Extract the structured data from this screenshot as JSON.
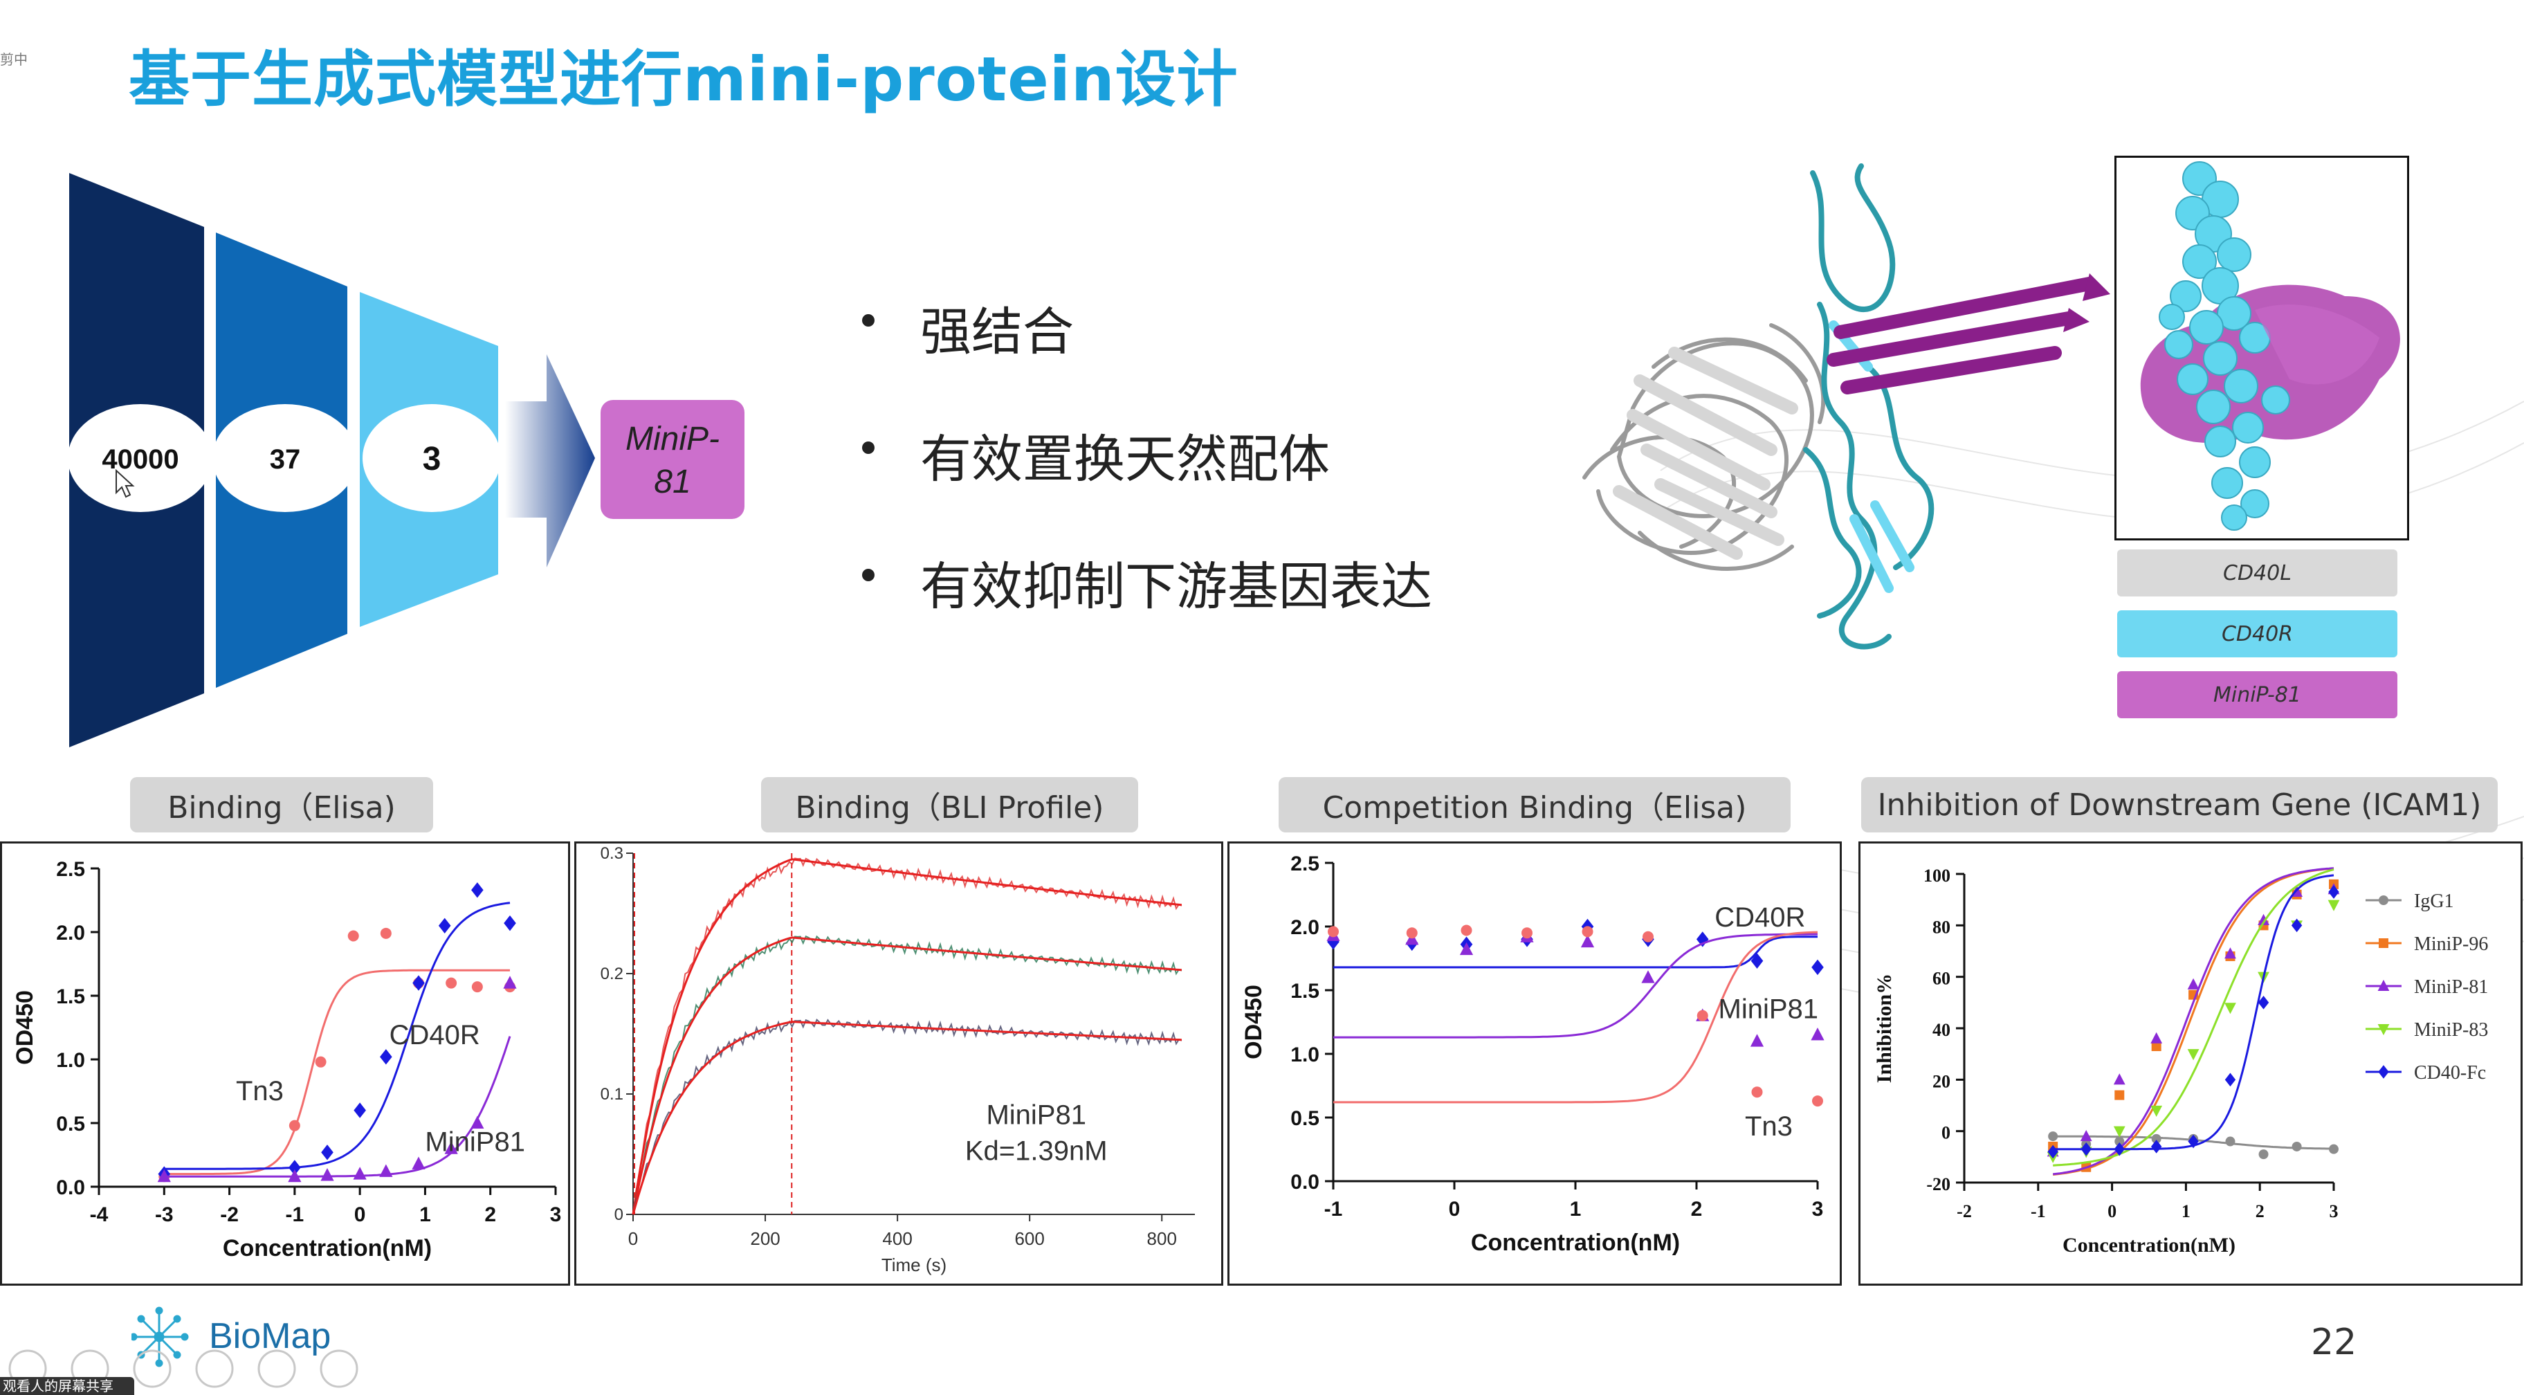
{
  "slide": {
    "title": "基于生成式模型进行mini-protein设计",
    "page_number": "22",
    "side_text": "剪中",
    "share_text": "观看人的屏幕共享",
    "logo_text": "BioMap"
  },
  "funnel": {
    "stages": [
      "40000",
      "37",
      "3"
    ],
    "result": [
      "MiniP-",
      "81"
    ],
    "colors": [
      "#0b2a5e",
      "#0e68b5",
      "#5cc8f2"
    ],
    "result_color": "#cc6fcc"
  },
  "bullets": [
    "强结合",
    "有效置换天然配体",
    "有效抑制下游基因表达"
  ],
  "structure_legend": [
    {
      "label": "CD40L",
      "color": "#d9d9d9"
    },
    {
      "label": "CD40R",
      "color": "#6fd8f2"
    },
    {
      "label": "MiniP-81",
      "color": "#c768c7"
    }
  ],
  "panel_labels": [
    "Binding（Elisa)",
    "Binding（BLI Profile)",
    "Competition Binding（Elisa)",
    "Inhibition of Downstream Gene (ICAM1)"
  ],
  "chart_data": [
    {
      "type": "scatter",
      "title": "Binding（Elisa)",
      "xlabel": "Concentration(nM)",
      "ylabel": "OD450",
      "xlim": [
        -4,
        3
      ],
      "ylim": [
        0,
        2.5
      ],
      "xticks": [
        "-4",
        "-3",
        "-2",
        "-1",
        "0",
        "1",
        "2",
        "3"
      ],
      "yticks": [
        "0.0",
        "0.5",
        "1.0",
        "1.5",
        "2.0",
        "2.5"
      ],
      "series": [
        {
          "name": "Tn3",
          "color": "#f26d6d",
          "marker": "circle",
          "x": [
            -3,
            -1,
            -0.6,
            -0.1,
            0.4,
            0.9,
            1.4,
            1.8,
            2.3
          ],
          "y": [
            0.08,
            0.48,
            0.98,
            1.97,
            1.99,
            1.6,
            1.6,
            1.57,
            1.57
          ],
          "fit": {
            "bottom": 0.1,
            "top": 1.7,
            "ec50": -0.75,
            "hill": 2.2
          }
        },
        {
          "name": "CD40R",
          "color": "#1a1ae0",
          "marker": "diamond",
          "x": [
            -3,
            -1,
            -0.5,
            0,
            0.4,
            0.9,
            1.3,
            1.8,
            2.3
          ],
          "y": [
            0.1,
            0.15,
            0.27,
            0.6,
            1.02,
            1.6,
            2.05,
            2.33,
            2.07
          ],
          "fit": {
            "bottom": 0.14,
            "top": 2.25,
            "ec50": 0.75,
            "hill": 1.3
          }
        },
        {
          "name": "MiniP81",
          "color": "#8a2ad6",
          "marker": "triangle",
          "x": [
            -3,
            -1,
            -0.5,
            0,
            0.4,
            0.9,
            1.4,
            1.8,
            2.3
          ],
          "y": [
            0.08,
            0.08,
            0.09,
            0.1,
            0.12,
            0.18,
            0.3,
            0.5,
            1.6
          ],
          "fit": {
            "bottom": 0.08,
            "top": 2.6,
            "ec50": 2.4,
            "hill": 1.1
          }
        }
      ]
    },
    {
      "type": "line",
      "title": "Binding（BLI Profile)",
      "xlabel": "Time (s)",
      "xlim": [
        0,
        850
      ],
      "ylim": [
        0,
        0.3
      ],
      "xticks": [
        "0",
        "200",
        "400",
        "600",
        "800"
      ],
      "yticks": [
        "0",
        "0.1",
        "0.2",
        "0.3"
      ],
      "annotation": [
        "MiniP81",
        "Kd=1.39nM"
      ],
      "association_end": 240,
      "series": [
        {
          "name": "",
          "plateau": 0.295,
          "end": 0.257,
          "color": "#e03a3a"
        },
        {
          "name": "",
          "plateau": 0.23,
          "end": 0.203,
          "color": "#2f7d5a"
        },
        {
          "name": "",
          "plateau": 0.16,
          "end": 0.145,
          "color": "#4a4a6a"
        }
      ]
    },
    {
      "type": "scatter",
      "title": "Competition Binding（Elisa)",
      "xlabel": "Concentration(nM)",
      "ylabel": "OD450",
      "xlim": [
        -1,
        3
      ],
      "ylim": [
        0,
        2.5
      ],
      "xticks": [
        "-1",
        "0",
        "1",
        "2",
        "3"
      ],
      "yticks": [
        "0.0",
        "0.5",
        "1.0",
        "1.5",
        "2.0",
        "2.5"
      ],
      "series": [
        {
          "name": "CD40R",
          "color": "#1a1ae0",
          "marker": "diamond",
          "x": [
            -1,
            -0.35,
            0.1,
            0.6,
            1.1,
            1.6,
            2.05,
            2.5,
            3
          ],
          "y": [
            1.88,
            1.87,
            1.86,
            1.9,
            2.0,
            1.9,
            1.9,
            1.73,
            1.68
          ],
          "fit": {
            "bottom": 1.68,
            "top": 1.92,
            "ec50": 2.5,
            "hill": 8
          }
        },
        {
          "name": "MiniP81",
          "color": "#8a2ad6",
          "marker": "triangle",
          "x": [
            -1,
            -0.35,
            0.1,
            0.6,
            1.1,
            1.6,
            2.05,
            2.5,
            3
          ],
          "y": [
            1.93,
            1.9,
            1.82,
            1.92,
            1.88,
            1.6,
            1.3,
            1.1,
            1.15
          ],
          "fit": {
            "bottom": 1.13,
            "top": 1.94,
            "ec50": 1.65,
            "hill": 2.5
          }
        },
        {
          "name": "Tn3",
          "color": "#f26d6d",
          "marker": "circle",
          "x": [
            -1,
            -0.35,
            0.1,
            0.6,
            1.1,
            1.6,
            2.05,
            2.5,
            3
          ],
          "y": [
            1.96,
            1.95,
            1.97,
            1.95,
            1.96,
            1.92,
            1.3,
            0.7,
            0.63
          ],
          "fit": {
            "bottom": 0.62,
            "top": 1.96,
            "ec50": 2.15,
            "hill": 3
          }
        }
      ]
    },
    {
      "type": "scatter",
      "title": "Inhibition of Downstream Gene (ICAM1)",
      "xlabel": "Concentration(nM)",
      "ylabel": "Inhibition%",
      "xlim": [
        -2,
        3
      ],
      "ylim": [
        -20,
        100
      ],
      "xticks": [
        "-2",
        "-1",
        "0",
        "1",
        "2",
        "3"
      ],
      "yticks": [
        "-20",
        "0",
        "20",
        "40",
        "60",
        "80",
        "100"
      ],
      "legend_position": "right",
      "series": [
        {
          "name": "IgG1",
          "color": "#8c8c8c",
          "marker": "circle",
          "x": [
            -0.8,
            -0.35,
            0.1,
            0.6,
            1.1,
            1.6,
            2.05,
            2.5,
            3
          ],
          "y": [
            -2,
            -5,
            -4,
            -3,
            -3,
            -4,
            -9,
            -6,
            -7
          ],
          "fit": {
            "bottom": -2,
            "top": -7,
            "ec50": 1.5,
            "hill": 1
          }
        },
        {
          "name": "MiniP-96",
          "color": "#f07820",
          "marker": "square",
          "x": [
            -0.8,
            -0.35,
            0.1,
            0.6,
            1.1,
            1.6,
            2.05,
            2.5,
            3
          ],
          "y": [
            -6,
            -14,
            14,
            33,
            53,
            68,
            80,
            92,
            96
          ],
          "fit": {
            "bottom": -18,
            "top": 103,
            "ec50": 1.05,
            "hill": 1.1
          }
        },
        {
          "name": "MiniP-81",
          "color": "#8a2ad6",
          "marker": "triangle",
          "x": [
            -0.8,
            -0.35,
            0.1,
            0.6,
            1.1,
            1.6,
            2.05,
            2.5,
            3
          ],
          "y": [
            -8,
            -2,
            20,
            36,
            57,
            69,
            82,
            93,
            94
          ],
          "fit": {
            "bottom": -18,
            "top": 103,
            "ec50": 1.0,
            "hill": 1.1
          }
        },
        {
          "name": "MiniP-83",
          "color": "#8de02a",
          "marker": "triangle-down",
          "x": [
            -0.8,
            -0.35,
            0.1,
            0.6,
            1.1,
            1.6,
            2.05,
            2.5,
            3
          ],
          "y": [
            -10,
            -8,
            0,
            8,
            30,
            48,
            60,
            80,
            88
          ],
          "fit": {
            "bottom": -14,
            "top": 105,
            "ec50": 1.45,
            "hill": 1.0
          }
        },
        {
          "name": "CD40-Fc",
          "color": "#1a1ae0",
          "marker": "diamond",
          "x": [
            -0.8,
            -0.35,
            0.1,
            0.6,
            1.1,
            1.6,
            2.05,
            2.5,
            3
          ],
          "y": [
            -8,
            -7,
            -7,
            -6,
            -4,
            20,
            50,
            80,
            93
          ],
          "fit": {
            "bottom": -7,
            "top": 100,
            "ec50": 1.95,
            "hill": 2.2
          }
        }
      ]
    }
  ]
}
